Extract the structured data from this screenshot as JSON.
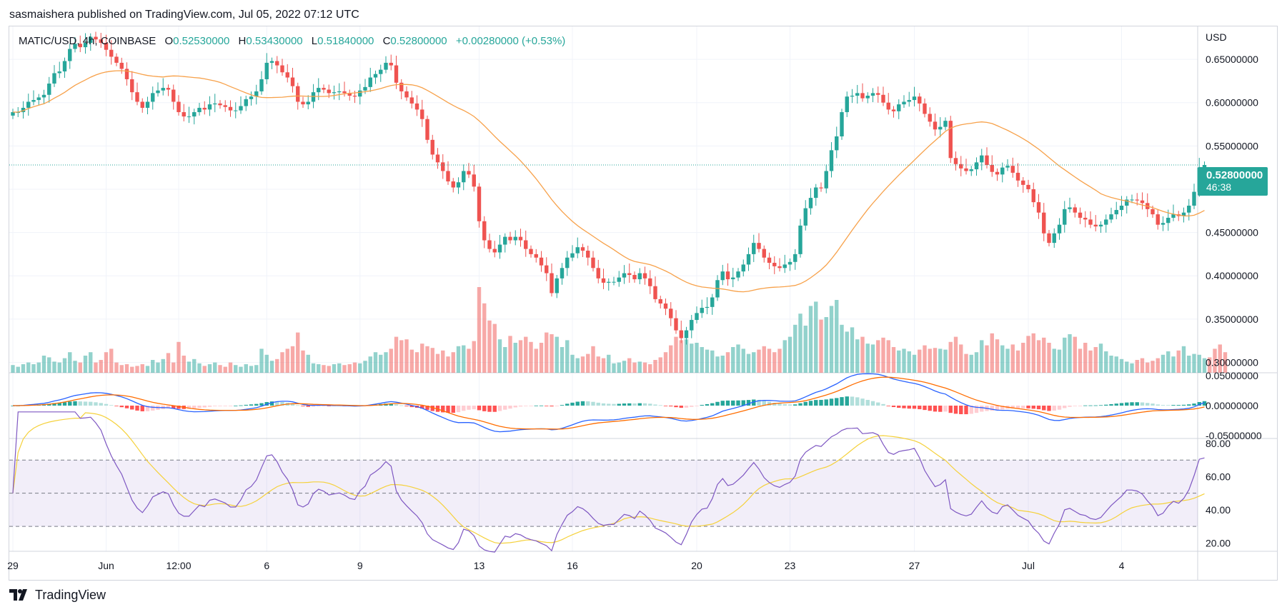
{
  "header": {
    "published_text": "sasmaishera published on TradingView.com, Jul 05, 2022 07:12 UTC"
  },
  "legend": {
    "symbol": "MATIC/USD, 4h, COINBASE",
    "open_label": "O",
    "open": "0.52530000",
    "high_label": "H",
    "high": "0.53430000",
    "low_label": "L",
    "low": "0.51840000",
    "close_label": "C",
    "close": "0.52800000",
    "change": "+0.00280000 (+0.53%)"
  },
  "price_tag": {
    "price": "0.52800000",
    "countdown": "46:38"
  },
  "footer": {
    "brand": "TradingView",
    "logo_icon": "tradingview-logo-icon"
  },
  "colors": {
    "up": "#26a69a",
    "down": "#ef5350",
    "ma": "#f7a14a",
    "macd": "#2962ff",
    "signal": "#ff6d00",
    "rsi": "#7e57c2",
    "rsi_ma": "#f5d13b",
    "grid": "#f0f3fa",
    "rsi_band": "#7e57c2"
  },
  "chart_data": [
    {
      "type": "candlestick",
      "title": "MATIC/USD, 4h, COINBASE",
      "axis_unit": "USD",
      "ylim": [
        0.288,
        0.688
      ],
      "y_ticks": [
        "0.30000000",
        "0.35000000",
        "0.40000000",
        "0.45000000",
        "0.50000000",
        "0.55000000",
        "0.60000000",
        "0.65000000"
      ],
      "y_tick_values": [
        0.3,
        0.35,
        0.4,
        0.45,
        0.5,
        0.55,
        0.6,
        0.65
      ],
      "x_labels": [
        "29",
        "Jun",
        "12:00",
        "6",
        "9",
        "13",
        "16",
        "20",
        "23",
        "27",
        "Jul",
        "4"
      ],
      "x_label_indices": [
        0,
        18,
        32,
        49,
        67,
        90,
        108,
        132,
        150,
        174,
        196,
        214
      ],
      "last_price": 0.528,
      "close": [
        0.589,
        0.589,
        0.594,
        0.601,
        0.603,
        0.606,
        0.609,
        0.622,
        0.634,
        0.636,
        0.648,
        0.662,
        0.668,
        0.664,
        0.669,
        0.676,
        0.673,
        0.669,
        0.661,
        0.653,
        0.646,
        0.639,
        0.627,
        0.612,
        0.601,
        0.594,
        0.601,
        0.611,
        0.614,
        0.617,
        0.615,
        0.601,
        0.589,
        0.584,
        0.584,
        0.589,
        0.594,
        0.592,
        0.598,
        0.599,
        0.597,
        0.595,
        0.591,
        0.591,
        0.596,
        0.604,
        0.607,
        0.613,
        0.627,
        0.646,
        0.648,
        0.643,
        0.635,
        0.629,
        0.619,
        0.601,
        0.598,
        0.601,
        0.612,
        0.617,
        0.615,
        0.611,
        0.612,
        0.613,
        0.611,
        0.608,
        0.607,
        0.614,
        0.618,
        0.629,
        0.633,
        0.638,
        0.646,
        0.643,
        0.623,
        0.613,
        0.606,
        0.599,
        0.592,
        0.581,
        0.557,
        0.54,
        0.531,
        0.521,
        0.509,
        0.502,
        0.508,
        0.521,
        0.517,
        0.503,
        0.463,
        0.441,
        0.431,
        0.427,
        0.436,
        0.445,
        0.441,
        0.445,
        0.441,
        0.431,
        0.425,
        0.421,
        0.412,
        0.403,
        0.38,
        0.397,
        0.409,
        0.421,
        0.426,
        0.433,
        0.429,
        0.421,
        0.409,
        0.397,
        0.392,
        0.393,
        0.393,
        0.398,
        0.403,
        0.401,
        0.396,
        0.403,
        0.397,
        0.388,
        0.373,
        0.368,
        0.362,
        0.351,
        0.337,
        0.328,
        0.337,
        0.349,
        0.357,
        0.363,
        0.364,
        0.375,
        0.395,
        0.405,
        0.396,
        0.398,
        0.405,
        0.413,
        0.425,
        0.438,
        0.431,
        0.421,
        0.415,
        0.411,
        0.409,
        0.413,
        0.416,
        0.425,
        0.458,
        0.478,
        0.49,
        0.502,
        0.501,
        0.521,
        0.545,
        0.561,
        0.589,
        0.607,
        0.608,
        0.611,
        0.605,
        0.608,
        0.611,
        0.609,
        0.6,
        0.592,
        0.59,
        0.598,
        0.601,
        0.603,
        0.607,
        0.599,
        0.587,
        0.578,
        0.569,
        0.572,
        0.579,
        0.536,
        0.529,
        0.524,
        0.521,
        0.523,
        0.531,
        0.539,
        0.528,
        0.52,
        0.517,
        0.525,
        0.527,
        0.519,
        0.51,
        0.505,
        0.5,
        0.485,
        0.473,
        0.449,
        0.438,
        0.449,
        0.459,
        0.477,
        0.479,
        0.473,
        0.467,
        0.465,
        0.459,
        0.457,
        0.459,
        0.465,
        0.471,
        0.476,
        0.481,
        0.488,
        0.488,
        0.487,
        0.484,
        0.477,
        0.471,
        0.459,
        0.461,
        0.467,
        0.471,
        0.469,
        0.473,
        0.481,
        0.497,
        0.525,
        0.528
      ],
      "ma_legend": "",
      "volume_relative": [
        0.09,
        0.07,
        0.1,
        0.12,
        0.1,
        0.12,
        0.2,
        0.18,
        0.13,
        0.12,
        0.17,
        0.24,
        0.14,
        0.12,
        0.2,
        0.24,
        0.12,
        0.15,
        0.24,
        0.28,
        0.12,
        0.09,
        0.1,
        0.07,
        0.08,
        0.1,
        0.08,
        0.15,
        0.12,
        0.16,
        0.23,
        0.12,
        0.36,
        0.2,
        0.13,
        0.16,
        0.11,
        0.08,
        0.1,
        0.12,
        0.09,
        0.07,
        0.12,
        0.09,
        0.07,
        0.1,
        0.08,
        0.09,
        0.28,
        0.21,
        0.14,
        0.16,
        0.24,
        0.28,
        0.31,
        0.47,
        0.26,
        0.21,
        0.11,
        0.1,
        0.09,
        0.08,
        0.1,
        0.11,
        0.09,
        0.1,
        0.12,
        0.11,
        0.14,
        0.19,
        0.24,
        0.21,
        0.24,
        0.28,
        0.42,
        0.38,
        0.39,
        0.27,
        0.24,
        0.34,
        0.31,
        0.29,
        0.22,
        0.26,
        0.19,
        0.24,
        0.31,
        0.32,
        0.28,
        0.37,
        1.0,
        0.81,
        0.61,
        0.57,
        0.39,
        0.3,
        0.43,
        0.35,
        0.38,
        0.42,
        0.36,
        0.28,
        0.35,
        0.47,
        0.45,
        0.42,
        0.3,
        0.38,
        0.21,
        0.17,
        0.19,
        0.22,
        0.31,
        0.19,
        0.17,
        0.21,
        0.11,
        0.12,
        0.14,
        0.17,
        0.12,
        0.13,
        0.12,
        0.1,
        0.15,
        0.18,
        0.24,
        0.32,
        0.42,
        0.38,
        0.39,
        0.34,
        0.35,
        0.3,
        0.27,
        0.26,
        0.19,
        0.2,
        0.24,
        0.3,
        0.33,
        0.28,
        0.22,
        0.24,
        0.27,
        0.31,
        0.28,
        0.24,
        0.28,
        0.38,
        0.42,
        0.56,
        0.69,
        0.55,
        0.78,
        0.83,
        0.62,
        0.65,
        0.78,
        0.85,
        0.56,
        0.48,
        0.53,
        0.39,
        0.42,
        0.34,
        0.33,
        0.38,
        0.41,
        0.38,
        0.3,
        0.26,
        0.28,
        0.25,
        0.21,
        0.27,
        0.32,
        0.28,
        0.29,
        0.28,
        0.27,
        0.36,
        0.42,
        0.33,
        0.22,
        0.21,
        0.24,
        0.38,
        0.32,
        0.46,
        0.39,
        0.32,
        0.28,
        0.33,
        0.26,
        0.35,
        0.43,
        0.46,
        0.38,
        0.41,
        0.35,
        0.28,
        0.27,
        0.41,
        0.45,
        0.42,
        0.28,
        0.35,
        0.26,
        0.3,
        0.34,
        0.25,
        0.2,
        0.19,
        0.16,
        0.13,
        0.11,
        0.15,
        0.17,
        0.12,
        0.14,
        0.17,
        0.21,
        0.25,
        0.19,
        0.26,
        0.31,
        0.2,
        0.22,
        0.21,
        0.17,
        0.18,
        0.28,
        0.33,
        0.24
      ]
    },
    {
      "type": "line",
      "title": "",
      "ylim": [
        -0.055,
        0.055
      ],
      "y_ticks": [
        "0.05000000",
        "0.00000000",
        "-0.05000000"
      ],
      "y_tick_values": [
        0.05,
        0.0,
        -0.05
      ],
      "series": [
        {
          "values": []
        },
        {
          "values": []
        }
      ],
      "histogram": []
    },
    {
      "type": "line",
      "title": "",
      "ylim": [
        15,
        83
      ],
      "y_ticks": [
        "80.00",
        "60.00",
        "40.00",
        "20.00"
      ],
      "y_tick_values": [
        80,
        60,
        40,
        20
      ],
      "bands": [
        70,
        50,
        30
      ],
      "series": [
        {
          "values": []
        },
        {
          "values": []
        }
      ]
    }
  ]
}
